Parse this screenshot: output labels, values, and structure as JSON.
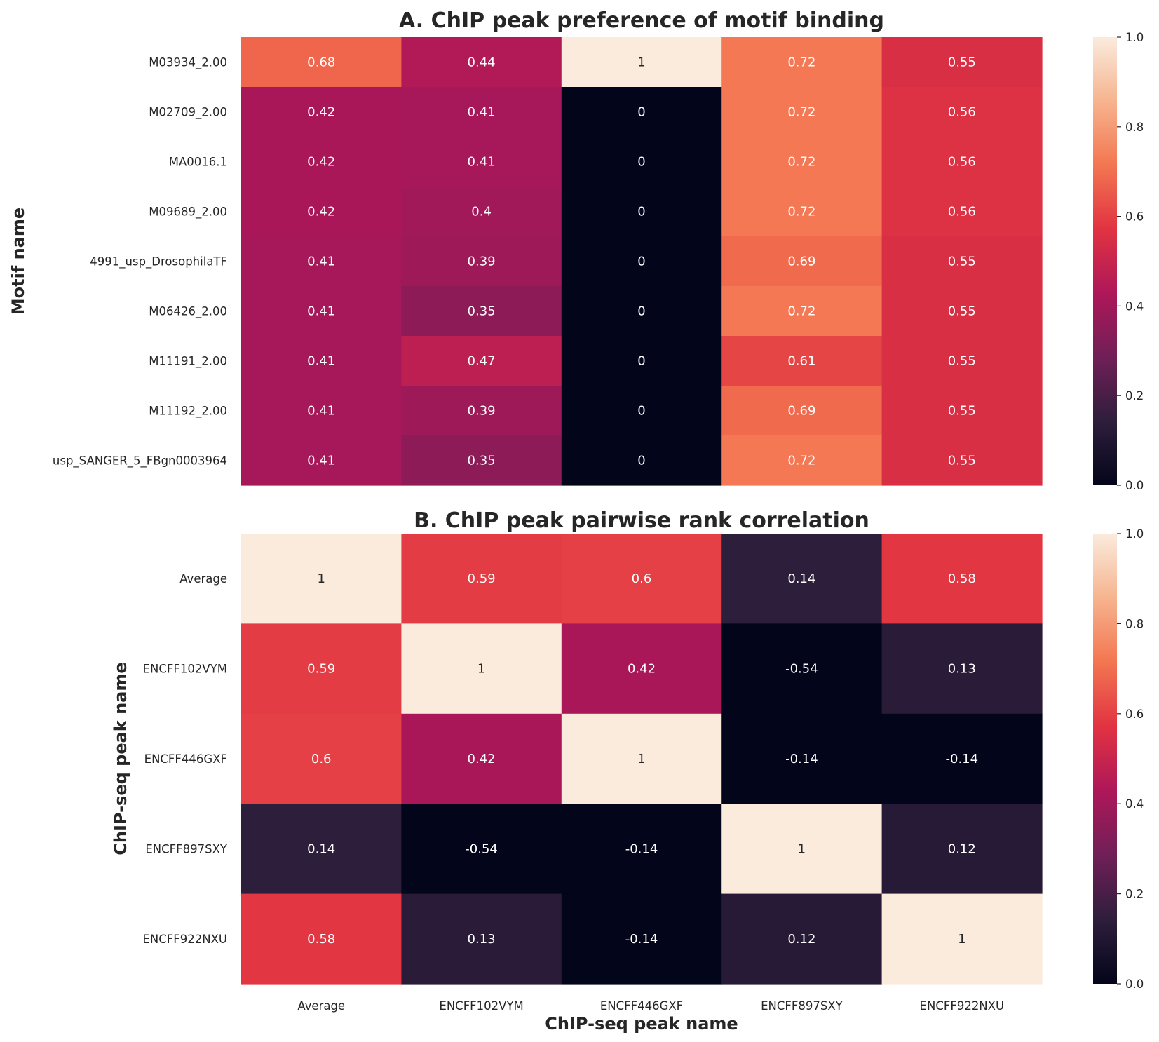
{
  "chart_data": [
    {
      "type": "heatmap",
      "title": "A. ChIP peak preference of motif binding",
      "ylabel": "Motif name",
      "xlabel": "",
      "rows": [
        "M03934_2.00",
        "M02709_2.00",
        "MA0016.1",
        "M09689_2.00",
        "4991_usp_DrosophilaTF",
        "M06426_2.00",
        "M11191_2.00",
        "M11192_2.00",
        "usp_SANGER_5_FBgn0003964"
      ],
      "columns": [
        "Average",
        "ENCFF102VYM",
        "ENCFF446GXF",
        "ENCFF897SXY",
        "ENCFF922NXU"
      ],
      "values": [
        [
          0.68,
          0.44,
          1,
          0.72,
          0.55
        ],
        [
          0.42,
          0.41,
          0,
          0.72,
          0.56
        ],
        [
          0.42,
          0.41,
          0,
          0.72,
          0.56
        ],
        [
          0.42,
          0.4,
          0,
          0.72,
          0.56
        ],
        [
          0.41,
          0.39,
          0,
          0.69,
          0.55
        ],
        [
          0.41,
          0.35,
          0,
          0.72,
          0.55
        ],
        [
          0.41,
          0.47,
          0,
          0.61,
          0.55
        ],
        [
          0.41,
          0.39,
          0,
          0.69,
          0.55
        ],
        [
          0.41,
          0.35,
          0,
          0.72,
          0.55
        ]
      ],
      "colorbar": {
        "range": [
          0.0,
          1.0
        ],
        "ticks": [
          "0.0",
          "0.2",
          "0.4",
          "0.6",
          "0.8",
          "1.0"
        ]
      },
      "show_x_tick_labels": false
    },
    {
      "type": "heatmap",
      "title": "B. ChIP peak pairwise rank correlation",
      "ylabel": "ChIP-seq peak name",
      "xlabel": "ChIP-seq peak name",
      "rows": [
        "Average",
        "ENCFF102VYM",
        "ENCFF446GXF",
        "ENCFF897SXY",
        "ENCFF922NXU"
      ],
      "columns": [
        "Average",
        "ENCFF102VYM",
        "ENCFF446GXF",
        "ENCFF897SXY",
        "ENCFF922NXU"
      ],
      "values": [
        [
          1,
          0.59,
          0.6,
          0.14,
          0.58
        ],
        [
          0.59,
          1,
          0.42,
          -0.54,
          0.13
        ],
        [
          0.6,
          0.42,
          1,
          -0.14,
          -0.14
        ],
        [
          0.14,
          -0.54,
          -0.14,
          1,
          0.12
        ],
        [
          0.58,
          0.13,
          -0.14,
          0.12,
          1
        ]
      ],
      "colorbar": {
        "range": [
          0.0,
          1.0
        ],
        "ticks": [
          "0.0",
          "0.2",
          "0.4",
          "0.6",
          "0.8",
          "1.0"
        ]
      },
      "show_x_tick_labels": true
    }
  ],
  "colormap": "rocket",
  "colormap_stops": [
    "#03051a",
    "#2e1e3c",
    "#701f57",
    "#ae1759",
    "#e13342",
    "#f37651",
    "#f6b48f",
    "#faebdd"
  ]
}
